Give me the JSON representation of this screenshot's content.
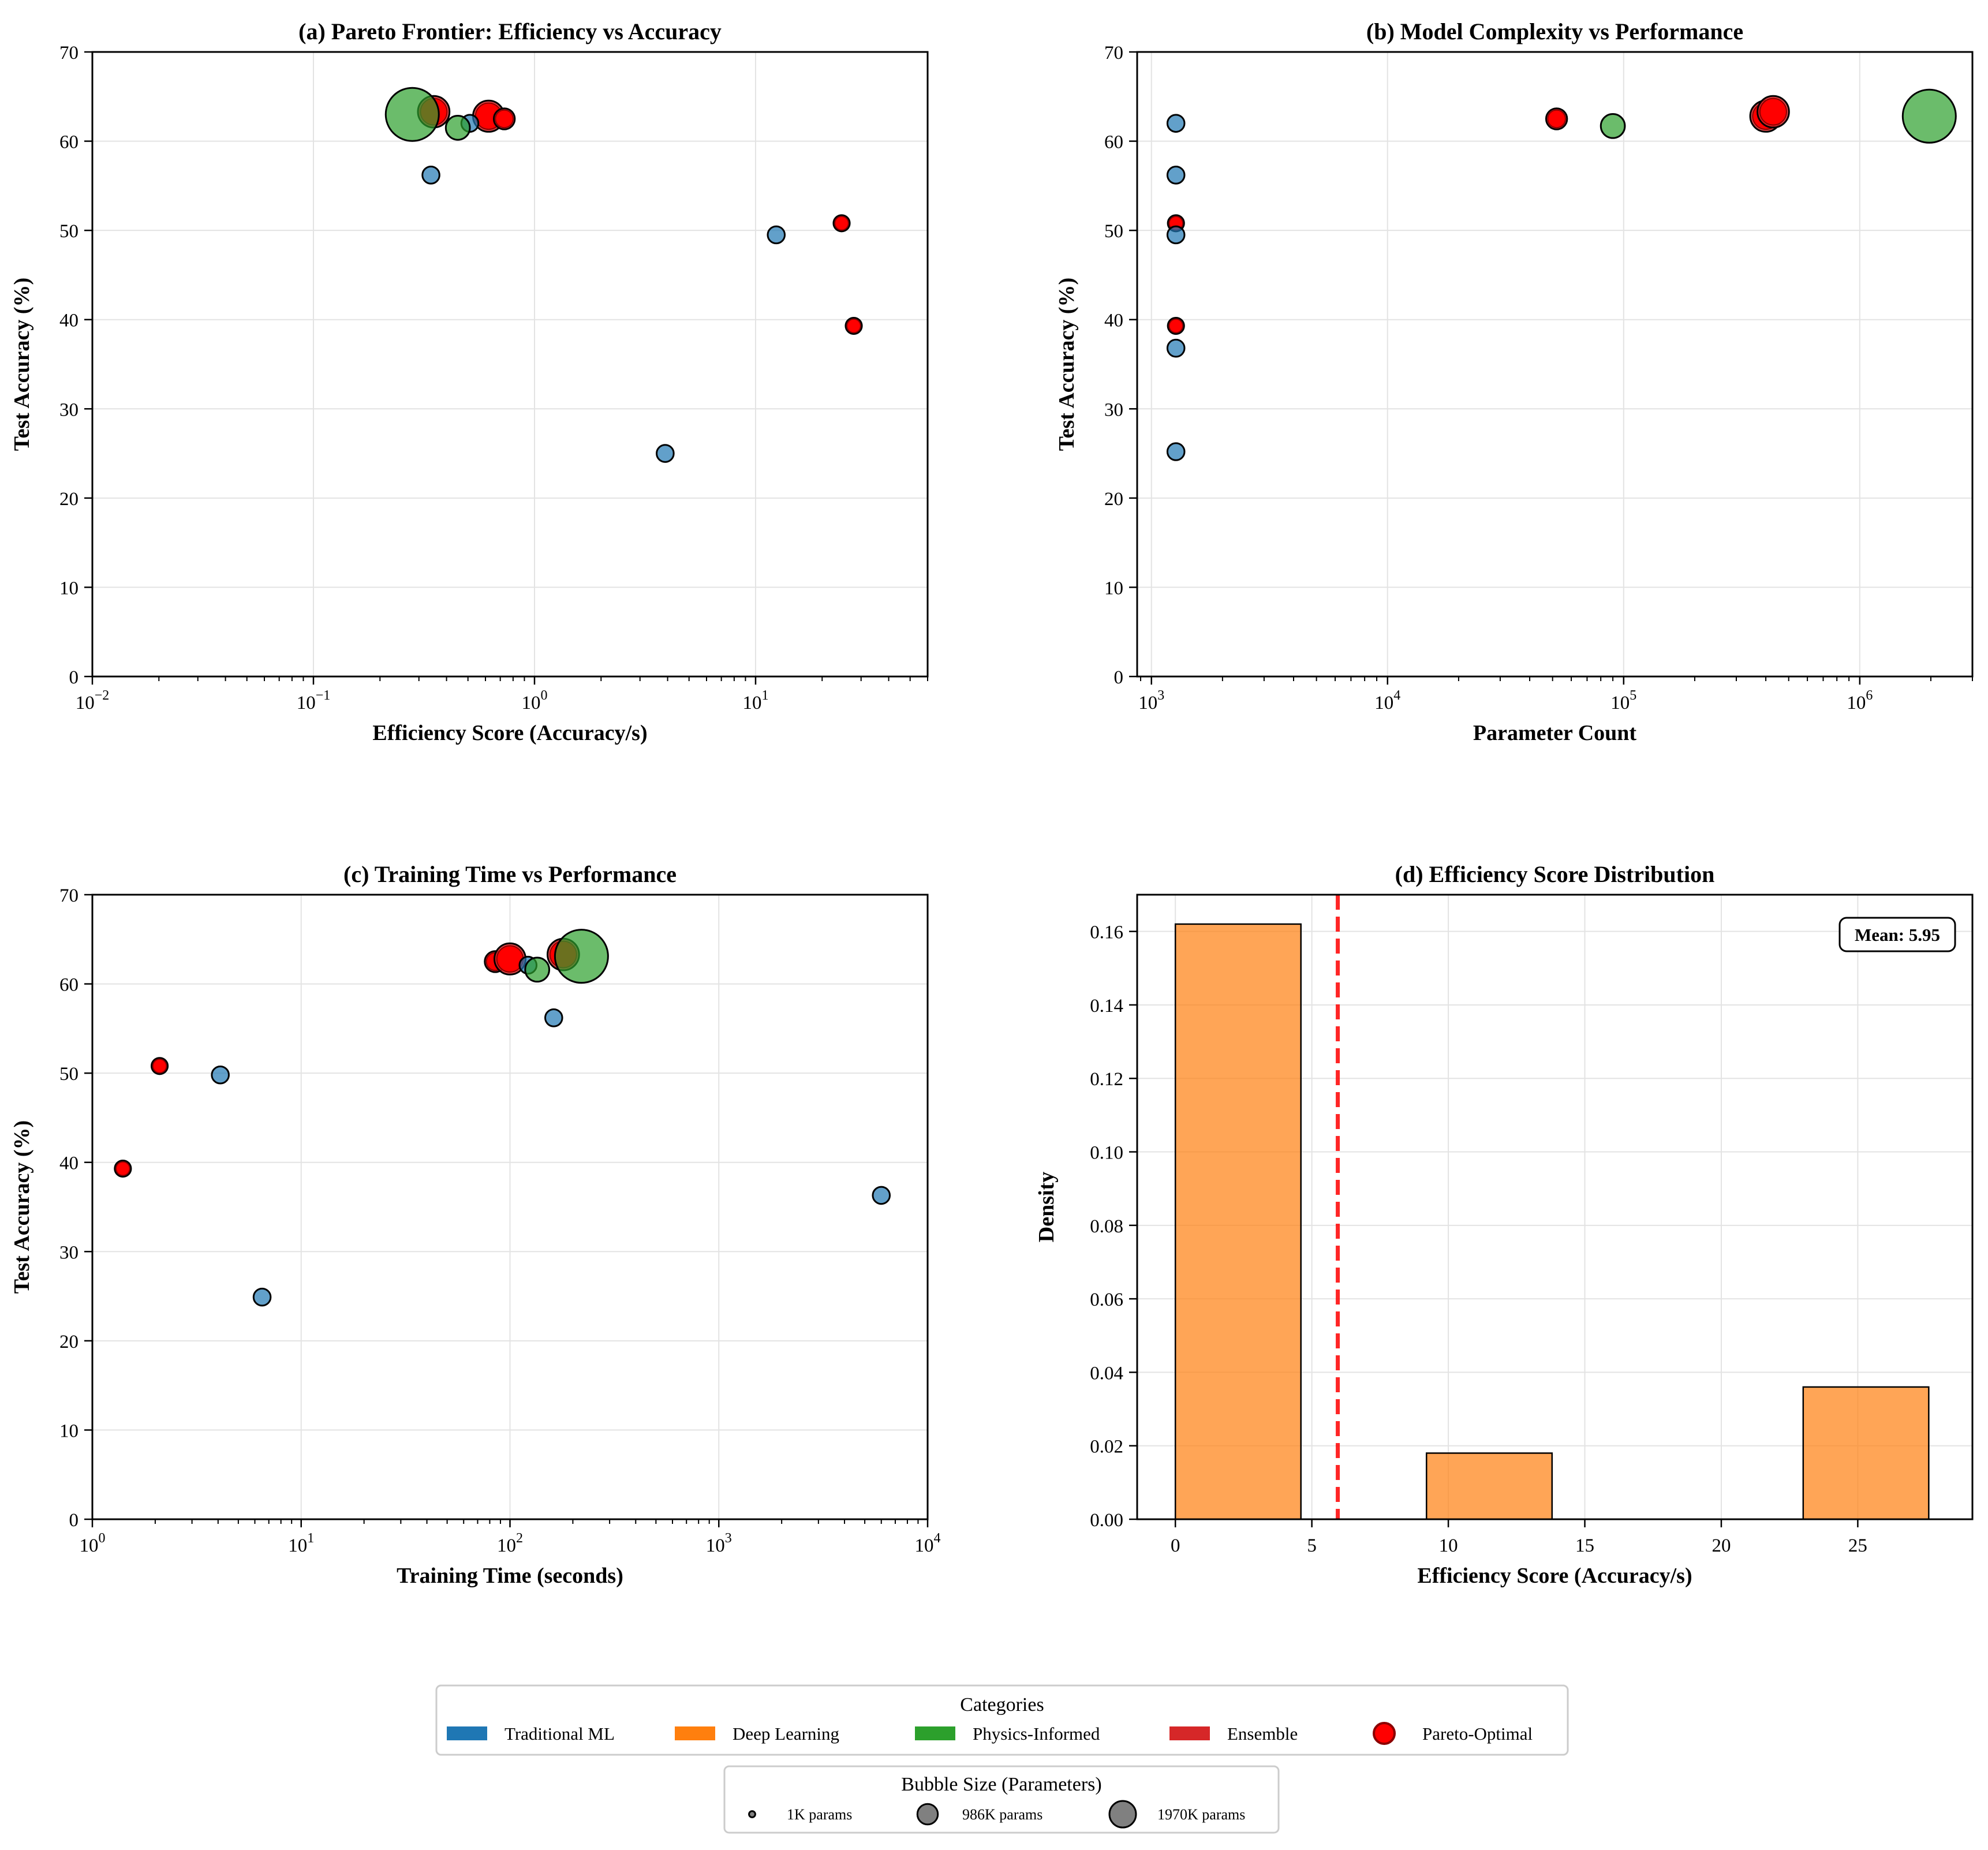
{
  "chart_data": [
    {
      "id": "a",
      "type": "scatter",
      "title": "(a) Pareto Frontier: Efficiency vs Accuracy",
      "xlabel": "Efficiency Score (Accuracy/s)",
      "ylabel": "Test Accuracy (%)",
      "xscale": "log",
      "xlim": [
        0.01,
        60
      ],
      "ylim": [
        0,
        70
      ],
      "xticks": [
        {
          "v": 0.01,
          "b": "10",
          "e": "−2"
        },
        {
          "v": 0.1,
          "b": "10",
          "e": "−1"
        },
        {
          "v": 1,
          "b": "10",
          "e": "0"
        },
        {
          "v": 10,
          "b": "10",
          "e": "1"
        }
      ],
      "yticks": [
        0,
        10,
        20,
        30,
        40,
        50,
        60,
        70
      ],
      "grid": true,
      "points": [
        {
          "x": 0.34,
          "y": 56.2,
          "params": 1200,
          "category": "Traditional ML",
          "pareto": false
        },
        {
          "x": 0.51,
          "y": 62.0,
          "params": 1200,
          "category": "Traditional ML",
          "pareto": false
        },
        {
          "x": 3.9,
          "y": 25.0,
          "params": 1200,
          "category": "Traditional ML",
          "pareto": false
        },
        {
          "x": 12.4,
          "y": 49.5,
          "params": 1200,
          "category": "Traditional ML",
          "pareto": false
        },
        {
          "x": 0.28,
          "y": 63.0,
          "params": 1970000,
          "category": "Physics-Informed",
          "pareto": false
        },
        {
          "x": 0.45,
          "y": 61.5,
          "params": 90000,
          "category": "Physics-Informed",
          "pareto": false
        },
        {
          "x": 0.35,
          "y": 63.3,
          "params": 420000,
          "category": "Ensemble",
          "pareto": true
        },
        {
          "x": 0.62,
          "y": 62.8,
          "params": 400000,
          "category": "Ensemble",
          "pareto": true
        },
        {
          "x": 0.73,
          "y": 62.5,
          "params": 51000,
          "category": "Ensemble",
          "pareto": true
        },
        {
          "x": 24.5,
          "y": 50.8,
          "params": 1250,
          "category": "Ensemble",
          "pareto": true
        },
        {
          "x": 27.8,
          "y": 39.3,
          "params": 1250,
          "category": "Ensemble",
          "pareto": true
        }
      ]
    },
    {
      "id": "b",
      "type": "scatter",
      "title": "(b) Model Complexity vs Performance",
      "xlabel": "Parameter Count",
      "ylabel": "Test Accuracy (%)",
      "xscale": "log",
      "xlim": [
        870,
        3000000
      ],
      "ylim": [
        0,
        70
      ],
      "xticks": [
        {
          "v": 1000,
          "b": "10",
          "e": "3"
        },
        {
          "v": 10000,
          "b": "10",
          "e": "4"
        },
        {
          "v": 100000,
          "b": "10",
          "e": "5"
        },
        {
          "v": 1000000,
          "b": "10",
          "e": "6"
        }
      ],
      "yticks": [
        0,
        10,
        20,
        30,
        40,
        50,
        60,
        70
      ],
      "grid": true,
      "points": [
        {
          "x": 1270,
          "y": 62.0,
          "params": 1200,
          "category": "Traditional ML",
          "pareto": false
        },
        {
          "x": 1270,
          "y": 56.2,
          "params": 1200,
          "category": "Traditional ML",
          "pareto": false
        },
        {
          "x": 1270,
          "y": 49.5,
          "params": 1200,
          "category": "Traditional ML",
          "pareto": false
        },
        {
          "x": 1270,
          "y": 36.8,
          "params": 1200,
          "category": "Traditional ML",
          "pareto": false
        },
        {
          "x": 1270,
          "y": 25.2,
          "params": 1200,
          "category": "Traditional ML",
          "pareto": false
        },
        {
          "x": 1270,
          "y": 50.8,
          "params": 1250,
          "category": "Ensemble",
          "pareto": true
        },
        {
          "x": 1270,
          "y": 39.3,
          "params": 1250,
          "category": "Ensemble",
          "pareto": true
        },
        {
          "x": 52000,
          "y": 62.5,
          "params": 51000,
          "category": "Ensemble",
          "pareto": true
        },
        {
          "x": 90000,
          "y": 61.7,
          "params": 90000,
          "category": "Physics-Informed",
          "pareto": false
        },
        {
          "x": 400000,
          "y": 62.8,
          "params": 400000,
          "category": "Ensemble",
          "pareto": true
        },
        {
          "x": 430000,
          "y": 63.3,
          "params": 420000,
          "category": "Ensemble",
          "pareto": true
        },
        {
          "x": 1970000,
          "y": 62.8,
          "params": 1970000,
          "category": "Physics-Informed",
          "pareto": false
        }
      ]
    },
    {
      "id": "c",
      "type": "scatter",
      "title": "(c) Training Time vs Performance",
      "xlabel": "Training Time (seconds)",
      "ylabel": "Test Accuracy (%)",
      "xscale": "log",
      "xlim": [
        1,
        10000
      ],
      "ylim": [
        0,
        70
      ],
      "xticks": [
        {
          "v": 1,
          "b": "10",
          "e": "0"
        },
        {
          "v": 10,
          "b": "10",
          "e": "1"
        },
        {
          "v": 100,
          "b": "10",
          "e": "2"
        },
        {
          "v": 1000,
          "b": "10",
          "e": "3"
        },
        {
          "v": 10000,
          "b": "10",
          "e": "4"
        }
      ],
      "yticks": [
        0,
        10,
        20,
        30,
        40,
        50,
        60,
        70
      ],
      "grid": true,
      "points": [
        {
          "x": 4.1,
          "y": 49.8,
          "params": 1200,
          "category": "Traditional ML",
          "pareto": false
        },
        {
          "x": 6.5,
          "y": 24.9,
          "params": 1200,
          "category": "Traditional ML",
          "pareto": false
        },
        {
          "x": 122,
          "y": 62.1,
          "params": 1200,
          "category": "Traditional ML",
          "pareto": false
        },
        {
          "x": 162,
          "y": 56.2,
          "params": 1200,
          "category": "Traditional ML",
          "pareto": false
        },
        {
          "x": 6000,
          "y": 36.3,
          "params": 1200,
          "category": "Traditional ML",
          "pareto": false
        },
        {
          "x": 1.4,
          "y": 39.3,
          "params": 1250,
          "category": "Ensemble",
          "pareto": true
        },
        {
          "x": 2.1,
          "y": 50.8,
          "params": 1250,
          "category": "Ensemble",
          "pareto": true
        },
        {
          "x": 85,
          "y": 62.5,
          "params": 51000,
          "category": "Ensemble",
          "pareto": true
        },
        {
          "x": 100,
          "y": 62.8,
          "params": 400000,
          "category": "Ensemble",
          "pareto": true
        },
        {
          "x": 135,
          "y": 61.6,
          "params": 90000,
          "category": "Physics-Informed",
          "pareto": false
        },
        {
          "x": 180,
          "y": 63.3,
          "params": 420000,
          "category": "Ensemble",
          "pareto": true
        },
        {
          "x": 220,
          "y": 63.1,
          "params": 1970000,
          "category": "Physics-Informed",
          "pareto": false
        }
      ]
    },
    {
      "id": "d",
      "type": "bar",
      "title": "(d) Efficiency Score Distribution",
      "xlabel": "Efficiency Score (Accuracy/s)",
      "ylabel": "Density",
      "xlim": [
        -1.4,
        29.2
      ],
      "ylim": [
        0,
        0.17
      ],
      "xticks": [
        0,
        5,
        10,
        15,
        20,
        25
      ],
      "yticks": [
        "0.00",
        "0.02",
        "0.04",
        "0.06",
        "0.08",
        "0.10",
        "0.12",
        "0.14",
        "0.16"
      ],
      "grid": true,
      "bins": [
        {
          "x0": 0.0,
          "x1": 4.6,
          "density": 0.162
        },
        {
          "x0": 9.2,
          "x1": 13.8,
          "density": 0.018
        },
        {
          "x0": 23.0,
          "x1": 27.6,
          "density": 0.036
        }
      ],
      "mean": 5.95,
      "mean_label": "Mean: 5.95"
    }
  ],
  "legend": {
    "title": "Categories",
    "categories": [
      {
        "label": "Traditional ML",
        "color": "#1f77b4"
      },
      {
        "label": "Deep Learning",
        "color": "#ff7f0e"
      },
      {
        "label": "Physics-Informed",
        "color": "#2ca02c"
      },
      {
        "label": "Ensemble",
        "color": "#d62728"
      }
    ],
    "pareto_label": "Pareto-Optimal",
    "pareto_color": "#ff0000"
  },
  "size_legend": {
    "title": "Bubble Size (Parameters)",
    "items": [
      {
        "label": "1K params",
        "params": 1000
      },
      {
        "label": "986K params",
        "params": 986000
      },
      {
        "label": "1970K params",
        "params": 1970000
      }
    ]
  }
}
